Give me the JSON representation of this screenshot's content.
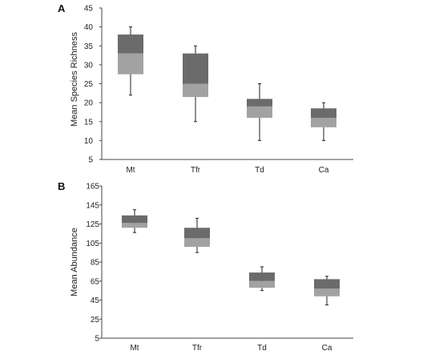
{
  "chart_data": [
    {
      "type": "box",
      "panel_label": "A",
      "ylabel": "Mean Species Richness",
      "xlabel": "",
      "ylim": [
        5,
        45
      ],
      "yticks": [
        5,
        10,
        15,
        20,
        25,
        30,
        35,
        40,
        45
      ],
      "categories": [
        "Mt",
        "Tfr",
        "Td",
        "Ca"
      ],
      "boxes": [
        {
          "category": "Mt",
          "min": 22,
          "q1": 27.5,
          "median": 33,
          "q3": 38,
          "max": 40
        },
        {
          "category": "Tfr",
          "min": 15,
          "q1": 21.5,
          "median": 25,
          "q3": 33,
          "max": 35
        },
        {
          "category": "Td",
          "min": 10,
          "q1": 16,
          "median": 19,
          "q3": 21,
          "max": 25
        },
        {
          "category": "Ca",
          "min": 10,
          "q1": 13.5,
          "median": 16,
          "q3": 18.5,
          "max": 20
        }
      ],
      "colors": {
        "upper": "#6b6b6b",
        "lower": "#a2a2a2"
      },
      "grid": false
    },
    {
      "type": "box",
      "panel_label": "B",
      "ylabel": "Mean Abundance",
      "xlabel": "",
      "ylim": [
        5,
        165
      ],
      "yticks": [
        5,
        25,
        45,
        65,
        85,
        105,
        125,
        145,
        165
      ],
      "categories": [
        "Mt",
        "Tfr",
        "Td",
        "Ca"
      ],
      "boxes": [
        {
          "category": "Mt",
          "min": 116,
          "q1": 121,
          "median": 126,
          "q3": 134,
          "max": 140
        },
        {
          "category": "Tfr",
          "min": 95,
          "q1": 101,
          "median": 110,
          "q3": 121,
          "max": 131
        },
        {
          "category": "Td",
          "min": 55,
          "q1": 58,
          "median": 65,
          "q3": 74,
          "max": 80
        },
        {
          "category": "Ca",
          "min": 40,
          "q1": 49,
          "median": 57,
          "q3": 67,
          "max": 70
        }
      ],
      "colors": {
        "upper": "#6b6b6b",
        "lower": "#a2a2a2"
      },
      "grid": false
    }
  ]
}
